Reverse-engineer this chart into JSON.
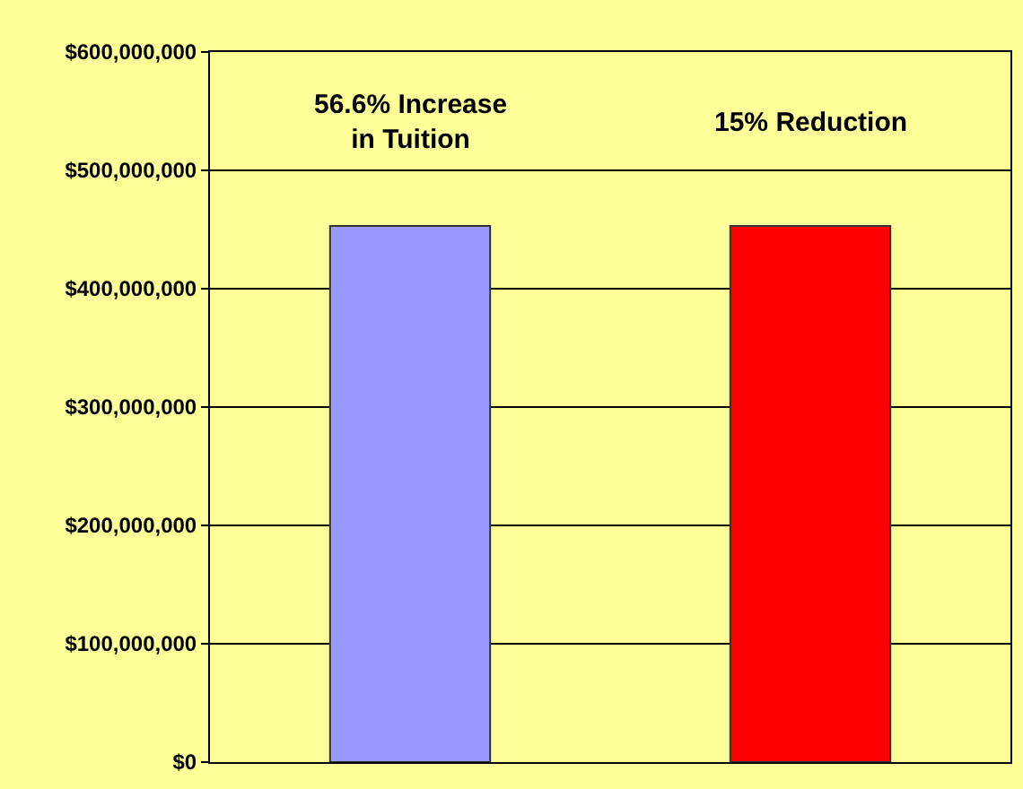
{
  "chart_data": {
    "type": "bar",
    "categories": [
      null,
      null
    ],
    "values": [
      453000000,
      453000000
    ],
    "colors": [
      "#9999ff",
      "#ff0000"
    ],
    "ylim": [
      0,
      600000000
    ],
    "yticks": [
      {
        "value": 0,
        "label": "$0"
      },
      {
        "value": 100000000,
        "label": "$100,000,000"
      },
      {
        "value": 200000000,
        "label": "$200,000,000"
      },
      {
        "value": 300000000,
        "label": "$300,000,000"
      },
      {
        "value": 400000000,
        "label": "$400,000,000"
      },
      {
        "value": 500000000,
        "label": "$500,000,000"
      },
      {
        "value": 600000000,
        "label": "$600,000,000"
      }
    ],
    "annotations": [
      "56.6% Increase\nin Tuition",
      "15% Reduction"
    ],
    "grid": "y"
  }
}
